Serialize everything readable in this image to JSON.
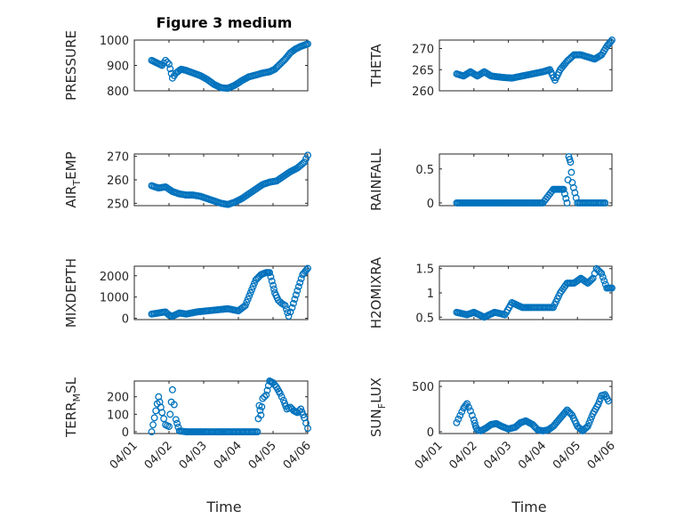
{
  "figure": {
    "title": "Figure 3 medium",
    "xlabel": "Time"
  },
  "chart_data": [
    {
      "type": "scatter",
      "ylabel": "PRESSURE",
      "ylim": [
        800,
        1000
      ],
      "yticks": [
        800,
        900,
        1000
      ],
      "xlim": [
        0,
        5
      ],
      "xticks": [
        "04/01",
        "04/02",
        "04/03",
        "04/04",
        "04/05",
        "04/06"
      ],
      "grid": true,
      "marker_color": "#0072BD",
      "x": [
        0.5,
        0.8,
        0.9,
        1.0,
        1.1,
        1.2,
        1.35,
        1.5,
        1.7,
        1.9,
        2.1,
        2.3,
        2.5,
        2.7,
        2.9,
        3.1,
        3.3,
        3.5,
        3.7,
        3.9,
        4.05,
        4.2,
        4.35,
        4.5,
        4.65,
        4.8,
        5.0
      ],
      "y": [
        920,
        900,
        920,
        905,
        850,
        870,
        885,
        880,
        870,
        860,
        845,
        825,
        812,
        810,
        822,
        840,
        855,
        862,
        870,
        875,
        885,
        905,
        925,
        950,
        965,
        975,
        985
      ]
    },
    {
      "type": "scatter",
      "ylabel": "THETA",
      "ylim": [
        260,
        272
      ],
      "yticks": [
        260,
        265,
        270
      ],
      "xlim": [
        0,
        5
      ],
      "xticks": [
        "04/01",
        "04/02",
        "04/03",
        "04/04",
        "04/05",
        "04/06"
      ],
      "grid": true,
      "marker_color": "#0072BD",
      "x": [
        0.5,
        0.7,
        0.9,
        1.1,
        1.3,
        1.5,
        1.8,
        2.1,
        2.4,
        2.7,
        3.0,
        3.2,
        3.35,
        3.5,
        3.7,
        3.9,
        4.1,
        4.3,
        4.5,
        4.7,
        4.85,
        5.0
      ],
      "y": [
        264,
        263.5,
        264.5,
        263.5,
        264.5,
        263.5,
        263.2,
        263,
        263.5,
        264,
        264.5,
        265,
        262.5,
        265,
        267,
        268.5,
        268.5,
        268,
        267.5,
        268.5,
        270.5,
        272
      ]
    },
    {
      "type": "scatter",
      "ylabel": "AIR_TEMP",
      "ylabel_main": "AIR",
      "ylabel_sub": "T",
      "ylabel_rest": "EMP",
      "ylim": [
        249,
        271
      ],
      "yticks": [
        250,
        260,
        270
      ],
      "xlim": [
        0,
        5
      ],
      "xticks": [
        "04/01",
        "04/02",
        "04/03",
        "04/04",
        "04/05",
        "04/06"
      ],
      "grid": true,
      "marker_color": "#0072BD",
      "x": [
        0.5,
        0.7,
        0.9,
        1.1,
        1.3,
        1.5,
        1.7,
        1.9,
        2.1,
        2.3,
        2.5,
        2.7,
        2.9,
        3.1,
        3.3,
        3.5,
        3.7,
        3.9,
        4.1,
        4.3,
        4.5,
        4.7,
        4.9,
        5.0
      ],
      "y": [
        257.5,
        256.5,
        257,
        255,
        254,
        253.5,
        253.5,
        253,
        252,
        251,
        250,
        249.5,
        250.5,
        252,
        254,
        256,
        258,
        259,
        259.5,
        261.5,
        263.5,
        265,
        267.5,
        270.5
      ]
    },
    {
      "type": "scatter",
      "ylabel": "RAINFALL",
      "ylim": [
        -0.04,
        0.72
      ],
      "yticks": [
        0,
        0.5
      ],
      "xlim": [
        0,
        5
      ],
      "xticks": [
        "04/01",
        "04/02",
        "04/03",
        "04/04",
        "04/05",
        "04/06"
      ],
      "grid": true,
      "marker_color": "#0072BD",
      "x": [
        0.5,
        1.0,
        1.5,
        2.0,
        2.5,
        3.0,
        3.3,
        3.4,
        3.5,
        3.6,
        3.7,
        3.75,
        3.8,
        3.85,
        4.0,
        4.3,
        4.6,
        4.8
      ],
      "y": [
        0,
        0,
        0,
        0,
        0,
        0,
        0.2,
        0.2,
        0.2,
        0.2,
        0,
        0.68,
        0.6,
        0.3,
        0,
        0,
        0,
        0
      ]
    },
    {
      "type": "scatter",
      "ylabel": "MIXDEPTH",
      "ylim": [
        -60,
        2450
      ],
      "yticks": [
        0,
        1000,
        2000
      ],
      "xlim": [
        0,
        5
      ],
      "xticks": [
        "04/01",
        "04/02",
        "04/03",
        "04/04",
        "04/05",
        "04/06"
      ],
      "grid": true,
      "marker_color": "#0072BD",
      "x": [
        0.5,
        0.7,
        0.9,
        1.0,
        1.1,
        1.3,
        1.5,
        1.8,
        2.1,
        2.4,
        2.7,
        3.0,
        3.2,
        3.35,
        3.5,
        3.65,
        3.8,
        3.9,
        4.0,
        4.05,
        4.15,
        4.25,
        4.35,
        4.45,
        4.55,
        4.7,
        4.85,
        5.0
      ],
      "y": [
        200,
        250,
        300,
        150,
        100,
        250,
        200,
        300,
        350,
        400,
        450,
        350,
        600,
        1200,
        1800,
        2050,
        2150,
        2150,
        1550,
        1200,
        850,
        700,
        600,
        100,
        500,
        1300,
        2050,
        2350
      ]
    },
    {
      "type": "scatter",
      "ylabel": "H2OMIXRA",
      "ylim": [
        0.45,
        1.55
      ],
      "yticks": [
        0.5,
        1,
        1.5
      ],
      "xlim": [
        0,
        5
      ],
      "xticks": [
        "04/01",
        "04/02",
        "04/03",
        "04/04",
        "04/05",
        "04/06"
      ],
      "grid": true,
      "marker_color": "#0072BD",
      "x": [
        0.5,
        0.8,
        1.0,
        1.3,
        1.6,
        1.9,
        2.1,
        2.4,
        2.7,
        3.0,
        3.3,
        3.5,
        3.7,
        3.9,
        4.1,
        4.3,
        4.45,
        4.55,
        4.7,
        4.85,
        5.0
      ],
      "y": [
        0.6,
        0.55,
        0.6,
        0.5,
        0.6,
        0.55,
        0.8,
        0.7,
        0.7,
        0.7,
        0.7,
        1.0,
        1.2,
        1.2,
        1.3,
        1.2,
        1.3,
        1.5,
        1.4,
        1.1,
        1.1
      ]
    },
    {
      "type": "scatter",
      "ylabel": "TERR_MSL",
      "ylabel_main": "TERR",
      "ylabel_sub": "M",
      "ylabel_rest": "SL",
      "ylim": [
        -10,
        290
      ],
      "yticks": [
        0,
        100,
        200
      ],
      "xlim": [
        0,
        5
      ],
      "xticks": [
        "04/01",
        "04/02",
        "04/03",
        "04/04",
        "04/05",
        "04/06"
      ],
      "grid": true,
      "marker_color": "#0072BD",
      "x": [
        0.5,
        0.7,
        0.8,
        0.9,
        1.0,
        1.1,
        1.2,
        1.3,
        1.5,
        1.8,
        2.1,
        2.4,
        2.7,
        3.0,
        3.3,
        3.55,
        3.6,
        3.65,
        3.7,
        3.8,
        3.9,
        4.0,
        4.1,
        4.2,
        4.3,
        4.4,
        4.5,
        4.6,
        4.7,
        4.8,
        4.9,
        5.0
      ],
      "y": [
        0,
        200,
        110,
        40,
        30,
        240,
        70,
        5,
        0,
        0,
        0,
        0,
        0,
        0,
        0,
        0,
        150,
        95,
        190,
        210,
        290,
        280,
        255,
        220,
        180,
        130,
        140,
        120,
        110,
        130,
        80,
        20
      ]
    },
    {
      "type": "scatter",
      "ylabel": "SUN_FLUX",
      "ylabel_main": "SUN",
      "ylabel_sub": "F",
      "ylabel_rest": "LUX",
      "ylim": [
        -20,
        560
      ],
      "yticks": [
        0,
        500
      ],
      "xlim": [
        0,
        5
      ],
      "xticks": [
        "04/01",
        "04/02",
        "04/03",
        "04/04",
        "04/05",
        "04/06"
      ],
      "grid": true,
      "marker_color": "#0072BD",
      "x": [
        0.5,
        0.6,
        0.7,
        0.8,
        0.9,
        1.0,
        1.05,
        1.1,
        1.2,
        1.35,
        1.5,
        1.65,
        1.8,
        2.0,
        2.2,
        2.35,
        2.5,
        2.7,
        2.85,
        3.0,
        3.15,
        3.3,
        3.5,
        3.7,
        3.85,
        4.0,
        4.15,
        4.3,
        4.45,
        4.6,
        4.7,
        4.8,
        4.9
      ],
      "y": [
        100,
        180,
        260,
        310,
        230,
        130,
        60,
        20,
        10,
        40,
        80,
        90,
        60,
        30,
        50,
        100,
        120,
        80,
        20,
        10,
        20,
        60,
        150,
        240,
        180,
        60,
        10,
        60,
        200,
        300,
        400,
        410,
        340
      ]
    }
  ]
}
